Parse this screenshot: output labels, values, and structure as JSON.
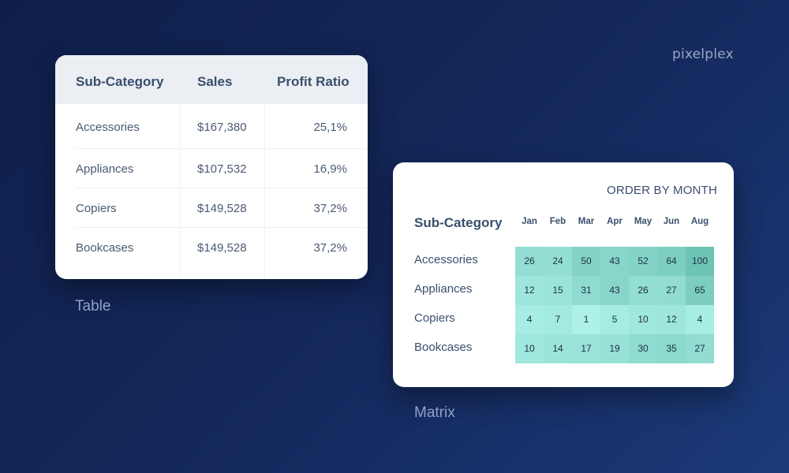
{
  "brand": {
    "logo_text": "pixelplex"
  },
  "table": {
    "caption": "Table",
    "headers": [
      "Sub-Category",
      "Sales",
      "Profit Ratio"
    ],
    "rows": [
      [
        "Accessories",
        "$167,380",
        "25,1%"
      ],
      [
        "Appliances",
        "$107,532",
        "16,9%"
      ],
      [
        "Copiers",
        "$149,528",
        "37,2%"
      ],
      [
        "Bookcases",
        "$149,528",
        "37,2%"
      ]
    ]
  },
  "matrix": {
    "caption": "Matrix",
    "title": "ORDER BY MONTH",
    "row_header": "Sub-Category"
  },
  "chart_data": [
    {
      "type": "table",
      "columns": [
        "Sub-Category",
        "Sales",
        "Profit Ratio"
      ],
      "rows": [
        [
          "Accessories",
          "$167,380",
          "25,1%"
        ],
        [
          "Appliances",
          "$107,532",
          "16,9%"
        ],
        [
          "Copiers",
          "$149,528",
          "37,2%"
        ],
        [
          "Bookcases",
          "$149,528",
          "37,2%"
        ]
      ]
    },
    {
      "type": "heatmap",
      "title": "ORDER BY MONTH",
      "x": [
        "Jan",
        "Feb",
        "Mar",
        "Apr",
        "May",
        "Jun",
        "Aug"
      ],
      "y": [
        "Accessories",
        "Appliances",
        "Copiers",
        "Bookcases"
      ],
      "values": [
        [
          26,
          24,
          50,
          43,
          52,
          64,
          100
        ],
        [
          12,
          15,
          31,
          43,
          26,
          27,
          65
        ],
        [
          4,
          7,
          1,
          5,
          10,
          12,
          4
        ],
        [
          10,
          14,
          17,
          19,
          30,
          35,
          27
        ]
      ],
      "colors": {
        "low": "#b3f5ee",
        "high": "#6ec4b4"
      }
    }
  ]
}
